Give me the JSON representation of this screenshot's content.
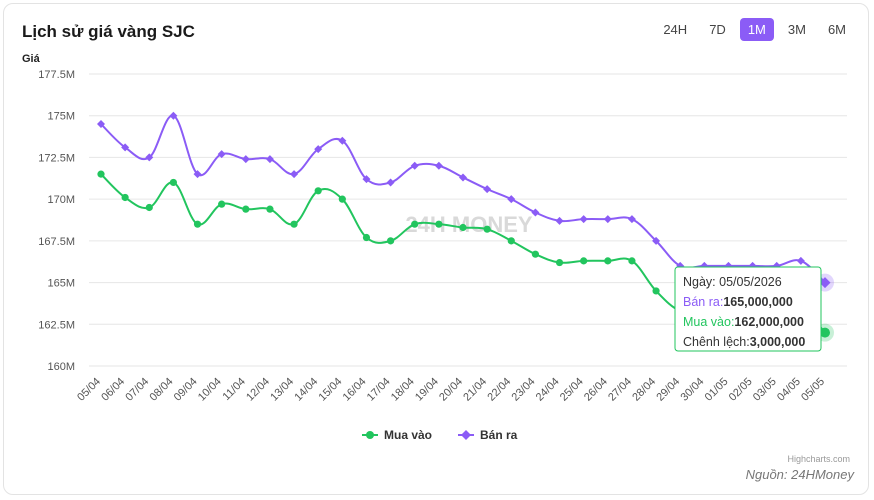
{
  "header": {
    "title": "Lịch sử giá vàng SJC",
    "ranges": [
      "24H",
      "7D",
      "1M",
      "3M",
      "6M"
    ],
    "active_range": "1M"
  },
  "source_note": "Nguồn: 24HMoney",
  "credit": "Highcharts.com",
  "watermark": "24H MONEY",
  "colors": {
    "buy": "#22c55e",
    "sell": "#8b5cf6",
    "active_range_bg": "#8b5cf6"
  },
  "chart_data": {
    "type": "line",
    "ylabel": "Giá",
    "ylim": [
      160,
      177.5
    ],
    "y_ticks": [
      160,
      162.5,
      165,
      167.5,
      170,
      172.5,
      175,
      177.5
    ],
    "y_tick_labels": [
      "160M",
      "162.5M",
      "165M",
      "167.5M",
      "170M",
      "172.5M",
      "175M",
      "177.5M"
    ],
    "categories": [
      "05/04",
      "06/04",
      "07/04",
      "08/04",
      "09/04",
      "10/04",
      "11/04",
      "12/04",
      "13/04",
      "14/04",
      "15/04",
      "16/04",
      "17/04",
      "18/04",
      "19/04",
      "20/04",
      "21/04",
      "22/04",
      "23/04",
      "24/04",
      "25/04",
      "26/04",
      "27/04",
      "28/04",
      "29/04",
      "30/04",
      "01/05",
      "02/05",
      "03/05",
      "04/05",
      "05/05"
    ],
    "series": [
      {
        "name": "Mua vào",
        "color": "#22c55e",
        "marker": "circle",
        "values": [
          171.5,
          170.1,
          169.5,
          171.0,
          168.5,
          169.7,
          169.4,
          169.4,
          168.5,
          170.5,
          170.0,
          167.7,
          167.5,
          168.5,
          168.5,
          168.3,
          168.2,
          167.5,
          166.7,
          166.2,
          166.3,
          166.3,
          166.3,
          164.5,
          163.3,
          163.3,
          163.3,
          163.3,
          163.3,
          163.5,
          162.0
        ]
      },
      {
        "name": "Bán ra",
        "color": "#8b5cf6",
        "marker": "diamond",
        "values": [
          174.5,
          173.1,
          172.5,
          175.0,
          171.5,
          172.7,
          172.4,
          172.4,
          171.5,
          173.0,
          173.5,
          171.2,
          171.0,
          172.0,
          172.0,
          171.3,
          170.6,
          170.0,
          169.2,
          168.7,
          168.8,
          168.8,
          168.8,
          167.5,
          166.0,
          166.0,
          166.0,
          166.0,
          166.0,
          166.3,
          165.0
        ]
      }
    ],
    "legend": {
      "position": "bottom",
      "items": [
        "Mua vào",
        "Bán ra"
      ]
    },
    "tooltip": {
      "date_label": "Ngày: 05/05/2026",
      "sell_label": "Bán ra:",
      "sell_value": "165,000,000",
      "buy_label": "Mua vào:",
      "buy_value": "162,000,000",
      "diff_label": "Chênh lệch:",
      "diff_value": "3,000,000"
    }
  }
}
